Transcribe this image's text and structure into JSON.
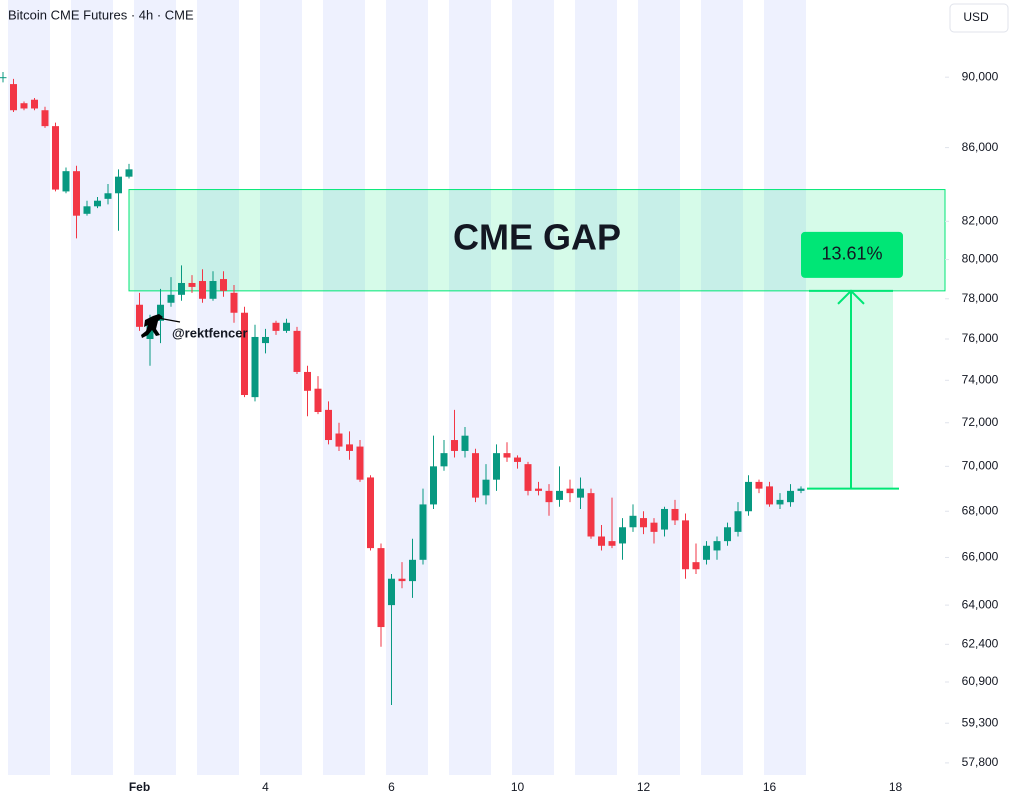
{
  "chart_data": {
    "type": "candlestick",
    "title": "Bitcoin CME Futures · 4h · CME",
    "currency": "USD",
    "up_color": "#089981",
    "down_color": "#f23645",
    "log": true,
    "ylim": [
      57350,
      94600
    ],
    "yticks": [
      {
        "value": 90000,
        "label": "90,000"
      },
      {
        "value": 86000,
        "label": "86,000"
      },
      {
        "value": 82000,
        "label": "82,000"
      },
      {
        "value": 80000,
        "label": "80,000"
      },
      {
        "value": 78000,
        "label": "78,000"
      },
      {
        "value": 76000,
        "label": "76,000"
      },
      {
        "value": 74000,
        "label": "74,000"
      },
      {
        "value": 72000,
        "label": "72,000"
      },
      {
        "value": 70000,
        "label": "70,000"
      },
      {
        "value": 68000,
        "label": "68,000"
      },
      {
        "value": 66000,
        "label": "66,000"
      },
      {
        "value": 64000,
        "label": "64,000"
      },
      {
        "value": 62400,
        "label": "62,400"
      },
      {
        "value": 60900,
        "label": "60,900"
      },
      {
        "value": 59300,
        "label": "59,300"
      },
      {
        "value": 57800,
        "label": "57,800"
      }
    ],
    "categories": [
      null,
      null,
      null,
      null,
      null,
      null,
      null,
      null,
      null,
      null,
      null,
      null,
      null,
      "Feb",
      null,
      null,
      null,
      null,
      null,
      null,
      null,
      null,
      null,
      null,
      null,
      "4",
      null,
      null,
      null,
      null,
      null,
      null,
      null,
      null,
      null,
      null,
      null,
      "6",
      null,
      null,
      null,
      null,
      null,
      null,
      null,
      null,
      null,
      null,
      null,
      "10",
      null,
      null,
      null,
      null,
      null,
      null,
      null,
      null,
      null,
      null,
      null,
      "12",
      null,
      null,
      null,
      null,
      null,
      null,
      null,
      null,
      null,
      null,
      null,
      "16",
      null,
      null,
      null,
      null,
      null,
      null,
      null,
      null,
      null,
      null,
      null,
      "18",
      null,
      null,
      null,
      null
    ],
    "open": [
      90000,
      89600,
      88500,
      88700,
      88100,
      87200,
      83600,
      84700,
      82400,
      82800,
      83200,
      83500,
      84400,
      77700,
      76000,
      76900,
      77800,
      78200,
      78800,
      78900,
      78000,
      79000,
      78300,
      77300,
      73200,
      75800,
      76800,
      76400,
      76400,
      74400,
      73600,
      72600,
      71500,
      71000,
      70900,
      69500,
      66400,
      64000,
      65100,
      65000,
      65900,
      68300,
      70000,
      71200,
      70700,
      70600,
      68700,
      69400,
      70600,
      70400,
      70100,
      69000,
      68900,
      68500,
      69000,
      68600,
      68800,
      66900,
      66700,
      66600,
      67300,
      67700,
      67500,
      67200,
      68100,
      67600,
      65800,
      65900,
      66300,
      66700,
      67100,
      68000,
      69300,
      69100,
      68300,
      68400,
      68900,
      null,
      null,
      null,
      null,
      null,
      null,
      null,
      null,
      null,
      null,
      null,
      null,
      null
    ],
    "high": [
      90300,
      89900,
      88600,
      88800,
      88300,
      87400,
      84900,
      85000,
      83100,
      83300,
      84000,
      84800,
      85100,
      78300,
      77200,
      78500,
      79100,
      79700,
      79200,
      79500,
      79400,
      79400,
      78700,
      77600,
      76700,
      76500,
      76900,
      77000,
      76600,
      74700,
      74200,
      73000,
      72000,
      71600,
      71200,
      69600,
      66600,
      65300,
      65800,
      66800,
      69000,
      71400,
      71200,
      72600,
      71800,
      70800,
      70100,
      71000,
      71100,
      70500,
      70200,
      69300,
      69200,
      70000,
      69400,
      69500,
      69000,
      67400,
      68600,
      67700,
      68300,
      68000,
      67700,
      68200,
      68500,
      67900,
      66600,
      66700,
      66900,
      67500,
      68400,
      69600,
      69400,
      69300,
      68800,
      69200,
      69100,
      null,
      null,
      null,
      null,
      null,
      null,
      null,
      null,
      null,
      null,
      null,
      null,
      null
    ],
    "low": [
      89700,
      88000,
      88100,
      88100,
      87100,
      83600,
      83500,
      81100,
      82300,
      82700,
      82900,
      81500,
      84300,
      76400,
      74700,
      75800,
      77600,
      77900,
      78300,
      77800,
      77900,
      78100,
      76800,
      73200,
      73000,
      75300,
      76200,
      76300,
      74300,
      72300,
      72400,
      71000,
      70700,
      70300,
      69300,
      66300,
      62300,
      60000,
      64700,
      64300,
      65700,
      68100,
      69800,
      70400,
      70400,
      68400,
      68300,
      68900,
      70200,
      69900,
      68700,
      68700,
      67800,
      68200,
      68400,
      68100,
      66800,
      66300,
      66400,
      65900,
      67100,
      67000,
      66600,
      66900,
      67400,
      65100,
      65300,
      65700,
      65900,
      66500,
      66900,
      67800,
      68800,
      68200,
      68100,
      68200,
      68800,
      null,
      null,
      null,
      null,
      null,
      null,
      null,
      null,
      null,
      null,
      null,
      null,
      null
    ],
    "close": [
      90000,
      88100,
      88200,
      88200,
      87200,
      83700,
      84700,
      82300,
      82800,
      83100,
      83500,
      84400,
      84800,
      76600,
      76900,
      77700,
      78200,
      78800,
      78600,
      78000,
      78900,
      78400,
      77300,
      73300,
      76100,
      76100,
      76400,
      76800,
      74400,
      73500,
      72500,
      71200,
      70900,
      70700,
      69400,
      66400,
      63100,
      65100,
      65000,
      65900,
      68300,
      70000,
      70600,
      70700,
      71400,
      68600,
      69400,
      70600,
      70400,
      70200,
      68900,
      68900,
      68400,
      68900,
      68800,
      69000,
      66900,
      66500,
      66500,
      67300,
      67800,
      67300,
      67100,
      68100,
      67600,
      65500,
      65500,
      66500,
      66700,
      67300,
      68000,
      69300,
      69000,
      68300,
      68500,
      68900,
      69000,
      null,
      null,
      null,
      null,
      null,
      null,
      null,
      null,
      null,
      null,
      null,
      null,
      null
    ],
    "gap": {
      "label": "CME GAP",
      "top": 83700,
      "bottom": 78400,
      "color": "#00e676"
    },
    "measure": {
      "label": "13.61%",
      "from": 69000,
      "to": 78400,
      "color": "#00e676"
    },
    "watermark": "@rektfencer"
  }
}
